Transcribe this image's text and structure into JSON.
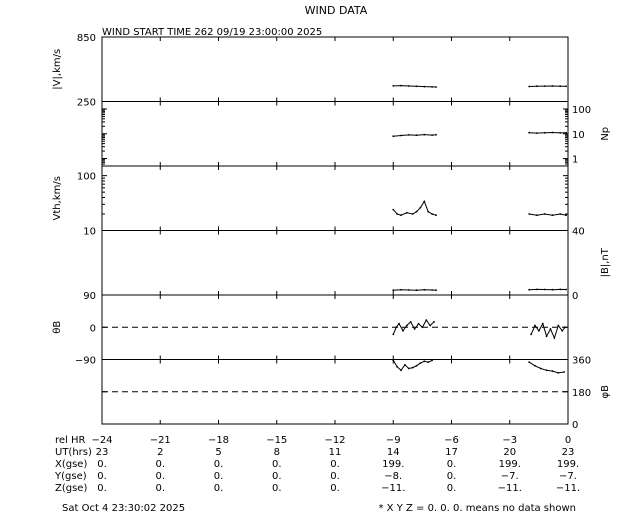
{
  "chart_data": {
    "type": "line",
    "title": "WIND DATA",
    "subtitle": "WIND START TIME 262 09/19 23:00:00 2025",
    "panels": [
      {
        "key": "v",
        "ylabel": "|V|,km/s",
        "ylim": [
          250,
          850
        ],
        "ticks": [
          {
            "value": 850,
            "label": "850"
          },
          {
            "value": 250,
            "label": "250"
          }
        ],
        "tick_side": "left",
        "log": false,
        "series": [
          {
            "x": [
              -9.0,
              -8.6,
              -8.2,
              -7.8,
              -7.4,
              -7.0,
              -6.8
            ],
            "y": [
              395,
              398,
              394,
              391,
              389,
              386,
              385
            ]
          },
          {
            "x": [
              -2.0,
              -1.6,
              -1.2,
              -0.8,
              -0.4,
              -0.1
            ],
            "y": [
              390,
              392,
              393,
              394,
              392,
              391
            ]
          }
        ]
      },
      {
        "key": "np",
        "ylabel": "Np",
        "ylim": [
          0.5,
          200
        ],
        "ticks": [
          {
            "value": 100,
            "label": "100"
          },
          {
            "value": 10,
            "label": "10"
          },
          {
            "value": 1,
            "label": "1"
          }
        ],
        "tick_side": "right",
        "log": true,
        "series": [
          {
            "x": [
              -9.0,
              -8.6,
              -8.2,
              -7.8,
              -7.4,
              -7.0,
              -6.8
            ],
            "y": [
              8,
              8.5,
              9,
              8.7,
              9.2,
              8.8,
              9.1
            ]
          },
          {
            "x": [
              -2.0,
              -1.6,
              -1.2,
              -0.8,
              -0.4,
              -0.1
            ],
            "y": [
              11,
              10.6,
              10.9,
              11.2,
              10.8,
              11
            ]
          }
        ]
      },
      {
        "key": "vth",
        "ylabel": "Vth,km/s",
        "ylim": [
          10,
          150
        ],
        "ticks": [
          {
            "value": 100,
            "label": "100"
          },
          {
            "value": 10,
            "label": "10"
          }
        ],
        "tick_side": "left",
        "log": true,
        "series": [
          {
            "x": [
              -9.0,
              -8.8,
              -8.6,
              -8.3,
              -8.0,
              -7.8,
              -7.6,
              -7.4,
              -7.2,
              -7.0,
              -6.8
            ],
            "y": [
              24,
              20,
              19,
              21,
              20,
              22,
              26,
              34,
              22,
              20,
              19
            ]
          },
          {
            "x": [
              -2.0,
              -1.6,
              -1.2,
              -0.8,
              -0.4,
              -0.1
            ],
            "y": [
              20,
              19,
              20,
              19,
              20,
              19
            ]
          }
        ]
      },
      {
        "key": "b",
        "ylabel": "|B|,nT",
        "ylim": [
          0,
          40
        ],
        "ticks": [
          {
            "value": 40,
            "label": "40"
          },
          {
            "value": 0,
            "label": "0"
          }
        ],
        "tick_side": "right",
        "log": false,
        "series": [
          {
            "x": [
              -9.0,
              -8.6,
              -8.2,
              -7.8,
              -7.4,
              -7.0,
              -6.8
            ],
            "y": [
              3.0,
              3.2,
              3.1,
              3.0,
              3.2,
              3.1,
              3.0
            ]
          },
          {
            "x": [
              -2.0,
              -1.6,
              -1.2,
              -0.8,
              -0.4,
              -0.1
            ],
            "y": [
              3.2,
              3.5,
              3.4,
              3.3,
              3.5,
              3.4
            ]
          }
        ]
      },
      {
        "key": "theta",
        "ylabel": "θB",
        "ylim": [
          -90,
          90
        ],
        "ticks": [
          {
            "value": 90,
            "label": "90"
          },
          {
            "value": 0,
            "label": "0"
          },
          {
            "value": -90,
            "label": "−90"
          }
        ],
        "tick_side": "left",
        "log": false,
        "zero_line": 0,
        "series": [
          {
            "x": [
              -9.0,
              -8.85,
              -8.7,
              -8.5,
              -8.3,
              -8.1,
              -7.9,
              -7.7,
              -7.5,
              -7.3,
              -7.1,
              -6.9
            ],
            "y": [
              -20,
              0,
              10,
              -10,
              5,
              15,
              -5,
              10,
              0,
              20,
              5,
              15
            ]
          },
          {
            "x": [
              -1.9,
              -1.7,
              -1.5,
              -1.3,
              -1.1,
              -0.9,
              -0.7,
              -0.5,
              -0.3,
              -0.15
            ],
            "y": [
              -20,
              5,
              -10,
              10,
              -25,
              -5,
              -30,
              5,
              -10,
              0
            ]
          }
        ]
      },
      {
        "key": "phi",
        "ylabel": "φB",
        "ylim": [
          0,
          360
        ],
        "ticks": [
          {
            "value": 360,
            "label": "360"
          },
          {
            "value": 180,
            "label": "180"
          },
          {
            "value": 0,
            "label": "0"
          }
        ],
        "tick_side": "right",
        "log": false,
        "zero_line": 180,
        "series": [
          {
            "x": [
              -9.0,
              -8.8,
              -8.6,
              -8.4,
              -8.2,
              -8.0,
              -7.8,
              -7.6,
              -7.4,
              -7.2,
              -7.0
            ],
            "y": [
              355,
              320,
              300,
              330,
              310,
              315,
              325,
              340,
              350,
              345,
              355
            ]
          },
          {
            "x": [
              -2.0,
              -1.7,
              -1.4,
              -1.1,
              -0.8,
              -0.5,
              -0.2
            ],
            "y": [
              345,
              325,
              310,
              300,
              295,
              285,
              290
            ]
          }
        ]
      }
    ],
    "x_axis": {
      "xlim": [
        -24,
        0
      ],
      "row_labels": [
        "rel HR",
        "UT(hrs)",
        "X(gse)",
        "Y(gse)",
        "Z(gse)"
      ],
      "ticks": [
        {
          "value": -24,
          "rel": "−24",
          "ut": "23",
          "x": "0.",
          "y": "0.",
          "z": "0."
        },
        {
          "value": -21,
          "rel": "−21",
          "ut": "2",
          "x": "0.",
          "y": "0.",
          "z": "0."
        },
        {
          "value": -18,
          "rel": "−18",
          "ut": "5",
          "x": "0.",
          "y": "0.",
          "z": "0."
        },
        {
          "value": -15,
          "rel": "−15",
          "ut": "8",
          "x": "0.",
          "y": "0.",
          "z": "0."
        },
        {
          "value": -12,
          "rel": "−12",
          "ut": "11",
          "x": "0.",
          "y": "0.",
          "z": "0."
        },
        {
          "value": -9,
          "rel": "−9",
          "ut": "14",
          "x": "199.",
          "y": "−8.",
          "z": "−11."
        },
        {
          "value": -6,
          "rel": "−6",
          "ut": "17",
          "x": "0.",
          "y": "0.",
          "z": "0."
        },
        {
          "value": -3,
          "rel": "−3",
          "ut": "20",
          "x": "199.",
          "y": "−7.",
          "z": "−11."
        },
        {
          "value": 0,
          "rel": "0",
          "ut": "23",
          "x": "199.",
          "y": "−7.",
          "z": "−11."
        }
      ]
    }
  },
  "footer": {
    "timestamp": "Sat Oct  4 23:30:02 2025",
    "note": "* X Y Z = 0. 0. 0. means no data shown"
  }
}
